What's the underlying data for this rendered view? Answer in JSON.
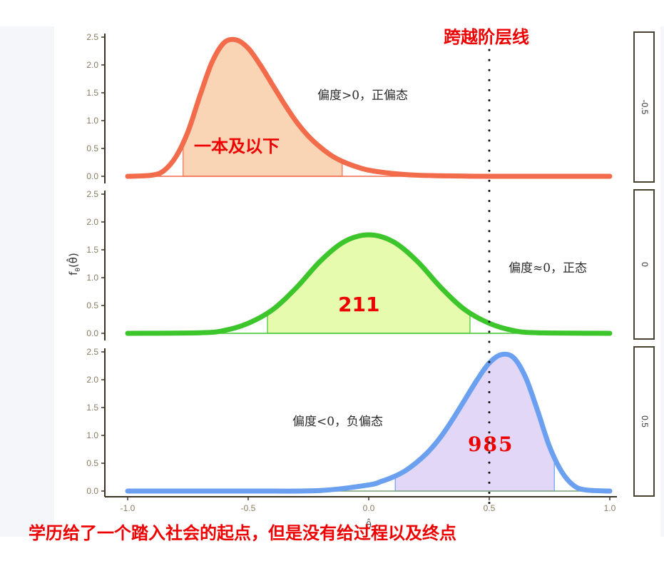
{
  "chart_data": {
    "type": "area",
    "title": "跨越阶层线",
    "caption": "学历给了一个踏入社会的起点，但是没有给过程以及终点",
    "xlabel": "θ̂",
    "ylabel": "f_θ(θ̂)",
    "xlim": [
      -1.0,
      1.0
    ],
    "ylim": [
      0,
      2.5
    ],
    "x_ticks": [
      "-1.0",
      "-0.5",
      "0.0",
      "0.5",
      "1.0"
    ],
    "y_ticks": [
      "0.0",
      "0.5",
      "1.0",
      "1.5",
      "2.0",
      "2.5"
    ],
    "grid": false,
    "reference_line": {
      "x": 0.5,
      "style": "dotted",
      "label": "跨越阶层线"
    },
    "panels": [
      {
        "strip_label": "-0.5",
        "skew_annotation": "偏度>0，正偏态",
        "region_label": "一本及以下",
        "line_color": "#f26b4a",
        "fill_color": "#f9d5b5",
        "peak_x": -0.55,
        "peak_y": 2.45,
        "shaded_interval": [
          -0.77,
          -0.11
        ],
        "x": [
          -1.0,
          -0.9,
          -0.85,
          -0.8,
          -0.75,
          -0.7,
          -0.65,
          -0.6,
          -0.55,
          -0.5,
          -0.45,
          -0.4,
          -0.35,
          -0.3,
          -0.25,
          -0.2,
          -0.15,
          -0.1,
          -0.05,
          0.0,
          0.1,
          0.2,
          0.3,
          0.5,
          1.0
        ],
        "y": [
          0.0,
          0.02,
          0.1,
          0.35,
          0.8,
          1.45,
          2.05,
          2.4,
          2.45,
          2.3,
          2.0,
          1.65,
          1.3,
          0.98,
          0.72,
          0.52,
          0.36,
          0.25,
          0.17,
          0.11,
          0.05,
          0.02,
          0.01,
          0.0,
          0.0
        ]
      },
      {
        "strip_label": "0",
        "skew_annotation": "偏度≈0，正态",
        "region_label": "211",
        "line_color": "#3dc52c",
        "fill_color": "#e6fbae",
        "peak_x": 0.0,
        "peak_y": 1.77,
        "shaded_interval": [
          -0.42,
          0.42
        ],
        "x": [
          -1.0,
          -0.7,
          -0.6,
          -0.5,
          -0.4,
          -0.3,
          -0.2,
          -0.1,
          0.0,
          0.1,
          0.2,
          0.3,
          0.4,
          0.5,
          0.6,
          0.7,
          1.0
        ],
        "y": [
          0.0,
          0.01,
          0.05,
          0.18,
          0.42,
          0.82,
          1.3,
          1.65,
          1.77,
          1.65,
          1.3,
          0.82,
          0.42,
          0.18,
          0.05,
          0.01,
          0.0
        ]
      },
      {
        "strip_label": "0.5",
        "skew_annotation": "偏度<0，负偏态",
        "region_label": "985",
        "line_color": "#6aa0ef",
        "fill_color": "#e2d7f7",
        "peak_x": 0.55,
        "peak_y": 2.45,
        "shaded_interval": [
          0.11,
          0.77
        ],
        "x": [
          -1.0,
          -0.5,
          -0.2,
          0.0,
          0.05,
          0.1,
          0.15,
          0.2,
          0.25,
          0.3,
          0.35,
          0.4,
          0.45,
          0.5,
          0.55,
          0.6,
          0.65,
          0.7,
          0.75,
          0.8,
          0.85,
          0.9,
          1.0
        ],
        "y": [
          0.0,
          0.0,
          0.01,
          0.11,
          0.17,
          0.25,
          0.36,
          0.52,
          0.72,
          0.98,
          1.3,
          1.65,
          2.0,
          2.3,
          2.45,
          2.4,
          2.05,
          1.45,
          0.8,
          0.35,
          0.1,
          0.02,
          0.0
        ]
      }
    ]
  }
}
